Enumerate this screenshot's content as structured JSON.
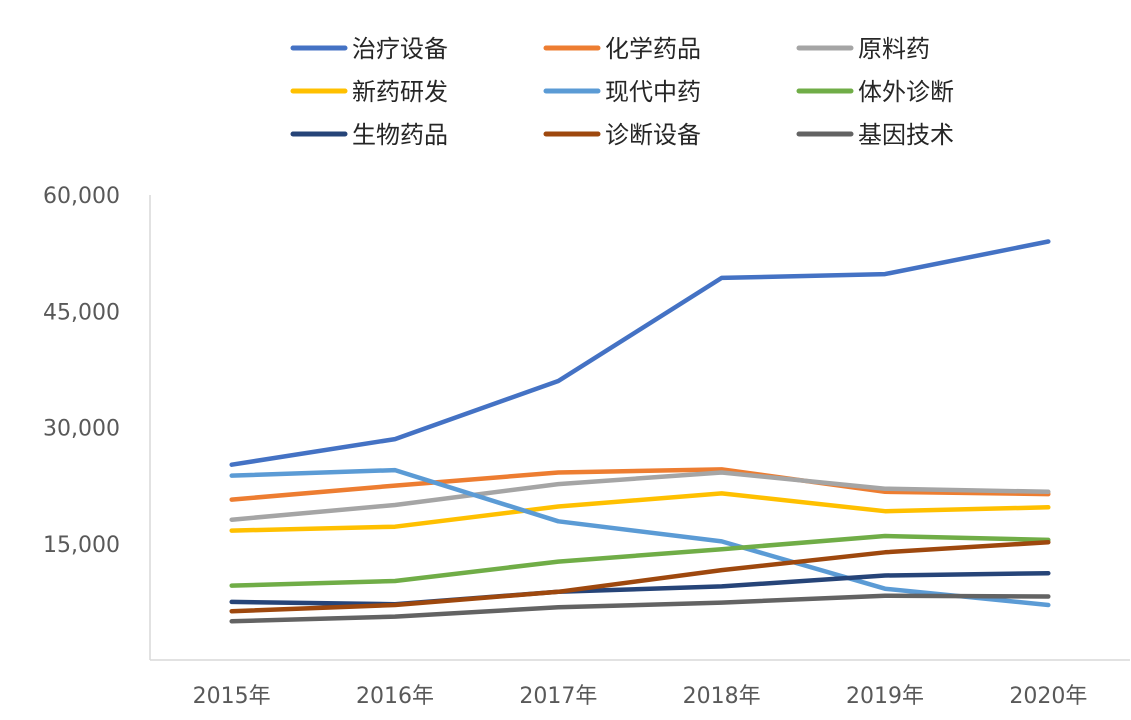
{
  "chart_data": {
    "type": "line",
    "title": "",
    "xlabel": "",
    "ylabel": "",
    "x": [
      "2015年",
      "2016年",
      "2017年",
      "2018年",
      "2019年",
      "2020年"
    ],
    "ylim": [
      0,
      60000
    ],
    "yticks": [
      15000,
      30000,
      45000,
      60000
    ],
    "ytick_labels": [
      "15,000",
      "30,000",
      "45,000",
      "60,000"
    ],
    "grid": false,
    "legend_position": "top",
    "series": [
      {
        "name": "治疗设备",
        "color": "#4472C4",
        "values": [
          25200,
          28500,
          36000,
          49300,
          49800,
          54000
        ]
      },
      {
        "name": "化学药品",
        "color": "#ED7D31",
        "values": [
          20700,
          22500,
          24200,
          24600,
          21700,
          21400
        ]
      },
      {
        "name": "原料药",
        "color": "#A5A5A5",
        "values": [
          18100,
          20000,
          22700,
          24200,
          22100,
          21700
        ]
      },
      {
        "name": "新药研发",
        "color": "#FFC000",
        "values": [
          16700,
          17200,
          19800,
          21500,
          19200,
          19700
        ]
      },
      {
        "name": "现代中药",
        "color": "#5B9BD5",
        "values": [
          23800,
          24500,
          17900,
          15300,
          9200,
          7100
        ]
      },
      {
        "name": "体外诊断",
        "color": "#70AD47",
        "values": [
          9600,
          10200,
          12700,
          14300,
          16000,
          15500
        ]
      },
      {
        "name": "生物药品",
        "color": "#264478",
        "values": [
          7500,
          7200,
          8800,
          9500,
          10900,
          11200
        ]
      },
      {
        "name": "诊断设备",
        "color": "#9E480E",
        "values": [
          6300,
          7100,
          8800,
          11600,
          13900,
          15200
        ]
      },
      {
        "name": "基因技术",
        "color": "#636363",
        "values": [
          5000,
          5600,
          6800,
          7400,
          8300,
          8200
        ]
      }
    ]
  }
}
